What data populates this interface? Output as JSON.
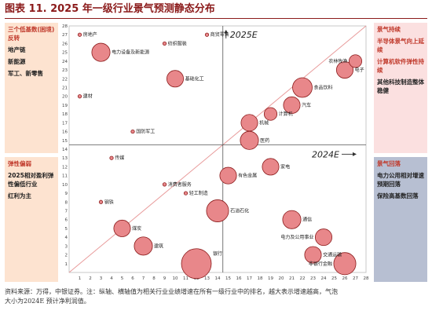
{
  "title": "图表 11. 2025 年一级行业景气预测静态分布",
  "footer": {
    "line1": "资料来源：万得，中银证券。注：纵轴、横轴值为相关行业业绩增速在所有一级行业中的排名，越大表示增速越高，气泡",
    "line2": "大小为2024E 预计净利润值。"
  },
  "left_panels": {
    "top": {
      "head": "三个低基数(困境)反转",
      "lines": [
        "地产链",
        "新能源",
        "军工、新零售"
      ]
    },
    "bottom": {
      "head": "弹性偏弱",
      "lines": [
        "2025相对盈利弹性偏低行业",
        "红利为主"
      ]
    }
  },
  "right_panels": {
    "top": {
      "head": "景气持续",
      "lines": [
        "半导体景气向上延续",
        "计算机软件弹性持续"
      ],
      "dark_lines": [
        "其他科技制造整体稳健"
      ]
    },
    "bottom": {
      "head": "景气回落",
      "lines": [
        "电力公用相对增速预期回落",
        "保险高基数回落"
      ]
    }
  },
  "chart_data": {
    "type": "scatter",
    "xlabel": "",
    "ylabel": "",
    "xlim": [
      0,
      28
    ],
    "ylim": [
      0,
      28
    ],
    "x_ticks": [
      1,
      2,
      3,
      4,
      5,
      6,
      7,
      8,
      9,
      10,
      11,
      12,
      13,
      14,
      15,
      16,
      17,
      18,
      19,
      20,
      21,
      22,
      23,
      24,
      25,
      26,
      27,
      28
    ],
    "y_ticks": [
      1,
      2,
      3,
      4,
      5,
      6,
      7,
      8,
      9,
      10,
      11,
      12,
      13,
      14,
      15,
      16,
      17,
      18,
      19,
      20,
      21,
      22,
      23,
      24,
      25,
      26,
      27,
      28
    ],
    "divider_x": 14.5,
    "divider_y": 14.5,
    "diagonal": [
      [
        0,
        0
      ],
      [
        28,
        28
      ]
    ],
    "annotations": [
      "2025E",
      "2024E"
    ],
    "grid": false,
    "bubble_size_meaning": "2024E net profit",
    "points": [
      {
        "label": "房地产",
        "x": 1,
        "y": 27,
        "size": 1
      },
      {
        "label": "纺织服装",
        "x": 9,
        "y": 26,
        "size": 1
      },
      {
        "label": "商贸零售",
        "x": 13,
        "y": 27,
        "size": 1
      },
      {
        "label": "电力设备及新能源",
        "x": 3,
        "y": 25,
        "size": 5
      },
      {
        "label": "农林牧渔",
        "x": 27,
        "y": 24,
        "size": 2
      },
      {
        "label": "电子",
        "x": 26,
        "y": 23,
        "size": 4
      },
      {
        "label": "基础化工",
        "x": 10,
        "y": 22,
        "size": 4
      },
      {
        "label": "食品饮料",
        "x": 22,
        "y": 21,
        "size": 6
      },
      {
        "label": "建材",
        "x": 1,
        "y": 20,
        "size": 1
      },
      {
        "label": "汽车",
        "x": 21,
        "y": 19,
        "size": 4
      },
      {
        "label": "计算机",
        "x": 19,
        "y": 18,
        "size": 2
      },
      {
        "label": "机械",
        "x": 17,
        "y": 17,
        "size": 4
      },
      {
        "label": "国防军工",
        "x": 6,
        "y": 16,
        "size": 1
      },
      {
        "label": "医药",
        "x": 17,
        "y": 15,
        "size": 5
      },
      {
        "label": "传媒",
        "x": 4,
        "y": 13,
        "size": 1
      },
      {
        "label": "家电",
        "x": 19,
        "y": 12,
        "size": 4
      },
      {
        "label": "有色金属",
        "x": 15,
        "y": 11,
        "size": 4
      },
      {
        "label": "消费者服务",
        "x": 9,
        "y": 10,
        "size": 1
      },
      {
        "label": "轻工制造",
        "x": 11,
        "y": 9,
        "size": 1
      },
      {
        "label": "钢铁",
        "x": 3,
        "y": 8,
        "size": 1
      },
      {
        "label": "石油石化",
        "x": 14,
        "y": 7,
        "size": 8
      },
      {
        "label": "通信",
        "x": 21,
        "y": 6,
        "size": 5
      },
      {
        "label": "煤炭",
        "x": 5,
        "y": 5,
        "size": 4
      },
      {
        "label": "电力及公用事业",
        "x": 24,
        "y": 4,
        "size": 4
      },
      {
        "label": "建筑",
        "x": 7,
        "y": 3,
        "size": 5
      },
      {
        "label": "交通运输",
        "x": 23,
        "y": 2,
        "size": 4
      },
      {
        "label": "银行",
        "x": 12,
        "y": 1,
        "size": 16
      },
      {
        "label": "非银行金融",
        "x": 26,
        "y": 1,
        "size": 8
      }
    ]
  },
  "colors": {
    "bubble_fill": "#e8878a",
    "bubble_stroke": "#8b1a1a",
    "diagonal": "#e89a9a",
    "box_top_left": "#fde3d0",
    "box_bottom_left": "#fde3d0",
    "box_top_right": "#fbe0e0",
    "box_bottom_right": "#b7bfd2"
  }
}
